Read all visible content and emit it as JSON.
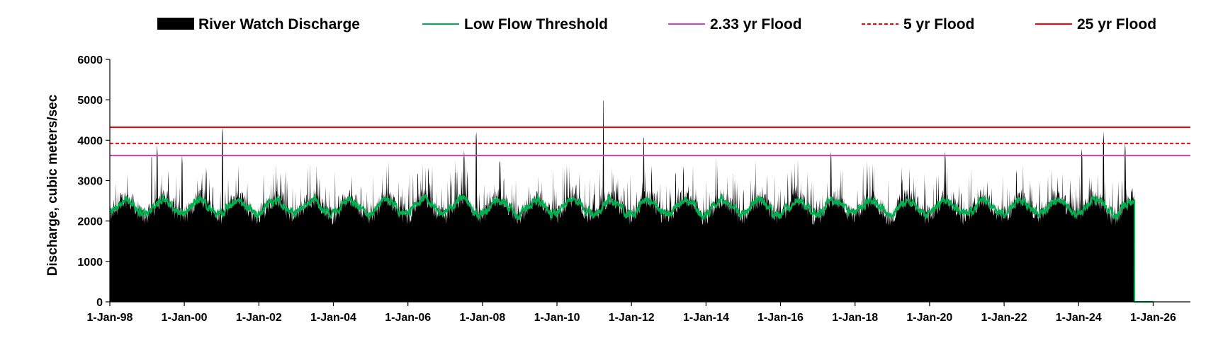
{
  "chart_data": {
    "type": "area",
    "title": "",
    "xlabel": "",
    "ylabel": "Discharge, cubic meters/sec",
    "ylim": [
      0,
      6000
    ],
    "yticks": [
      "0",
      "1000",
      "2000",
      "3000",
      "4000",
      "5000",
      "6000"
    ],
    "xlim": [
      "1998-01-01",
      "2027-01-01"
    ],
    "xtick_labels": [
      "1-Jan-98",
      "1-Jan-00",
      "1-Jan-02",
      "1-Jan-04",
      "1-Jan-06",
      "1-Jan-08",
      "1-Jan-10",
      "1-Jan-12",
      "1-Jan-14",
      "1-Jan-16",
      "1-Jan-18",
      "1-Jan-20",
      "1-Jan-22",
      "1-Jan-24",
      "1-Jan-26"
    ],
    "xtick_dates": [
      "1998-01-01",
      "2000-01-01",
      "2002-01-01",
      "2004-01-01",
      "2006-01-01",
      "2008-01-01",
      "2010-01-01",
      "2012-01-01",
      "2014-01-01",
      "2016-01-01",
      "2018-01-01",
      "2020-01-01",
      "2022-01-01",
      "2024-01-01",
      "2026-01-01"
    ],
    "grid": false,
    "legend_position": "top",
    "series": [
      {
        "name": "River Watch Discharge",
        "kind": "area",
        "color": "#000000",
        "baseline": 2350,
        "peaks": [
          {
            "date": "1999-02-15",
            "value": 3700
          },
          {
            "date": "1999-04-10",
            "value": 3880
          },
          {
            "date": "1999-12-10",
            "value": 3650
          },
          {
            "date": "2001-01-10",
            "value": 4380
          },
          {
            "date": "2007-07-05",
            "value": 3760
          },
          {
            "date": "2007-11-01",
            "value": 4270
          },
          {
            "date": "2011-04-01",
            "value": 5100
          },
          {
            "date": "2012-05-01",
            "value": 4180
          },
          {
            "date": "2017-05-10",
            "value": 3780
          },
          {
            "date": "2020-06-01",
            "value": 3780
          },
          {
            "date": "2024-02-01",
            "value": 3850
          },
          {
            "date": "2024-09-01",
            "value": 4220
          },
          {
            "date": "2025-04-01",
            "value": 3960
          }
        ],
        "end_date": "2025-07-01"
      },
      {
        "name": "Low Flow Threshold",
        "kind": "line",
        "color": "#00b050",
        "seasonal_range": [
          2050,
          2650
        ],
        "end_value": 0,
        "drop_date": "2025-07-01",
        "end_date": "2026-01-01"
      },
      {
        "name": "2.33 yr Flood",
        "kind": "hline",
        "color": "#cc44cc",
        "value": 3620,
        "dashed": false
      },
      {
        "name": "5 yr Flood",
        "kind": "hline",
        "color": "#ff0000",
        "value": 3920,
        "dashed": true
      },
      {
        "name": "25 yr Flood",
        "kind": "hline",
        "color": "#ff0000",
        "value": 4320,
        "dashed": false
      }
    ]
  }
}
